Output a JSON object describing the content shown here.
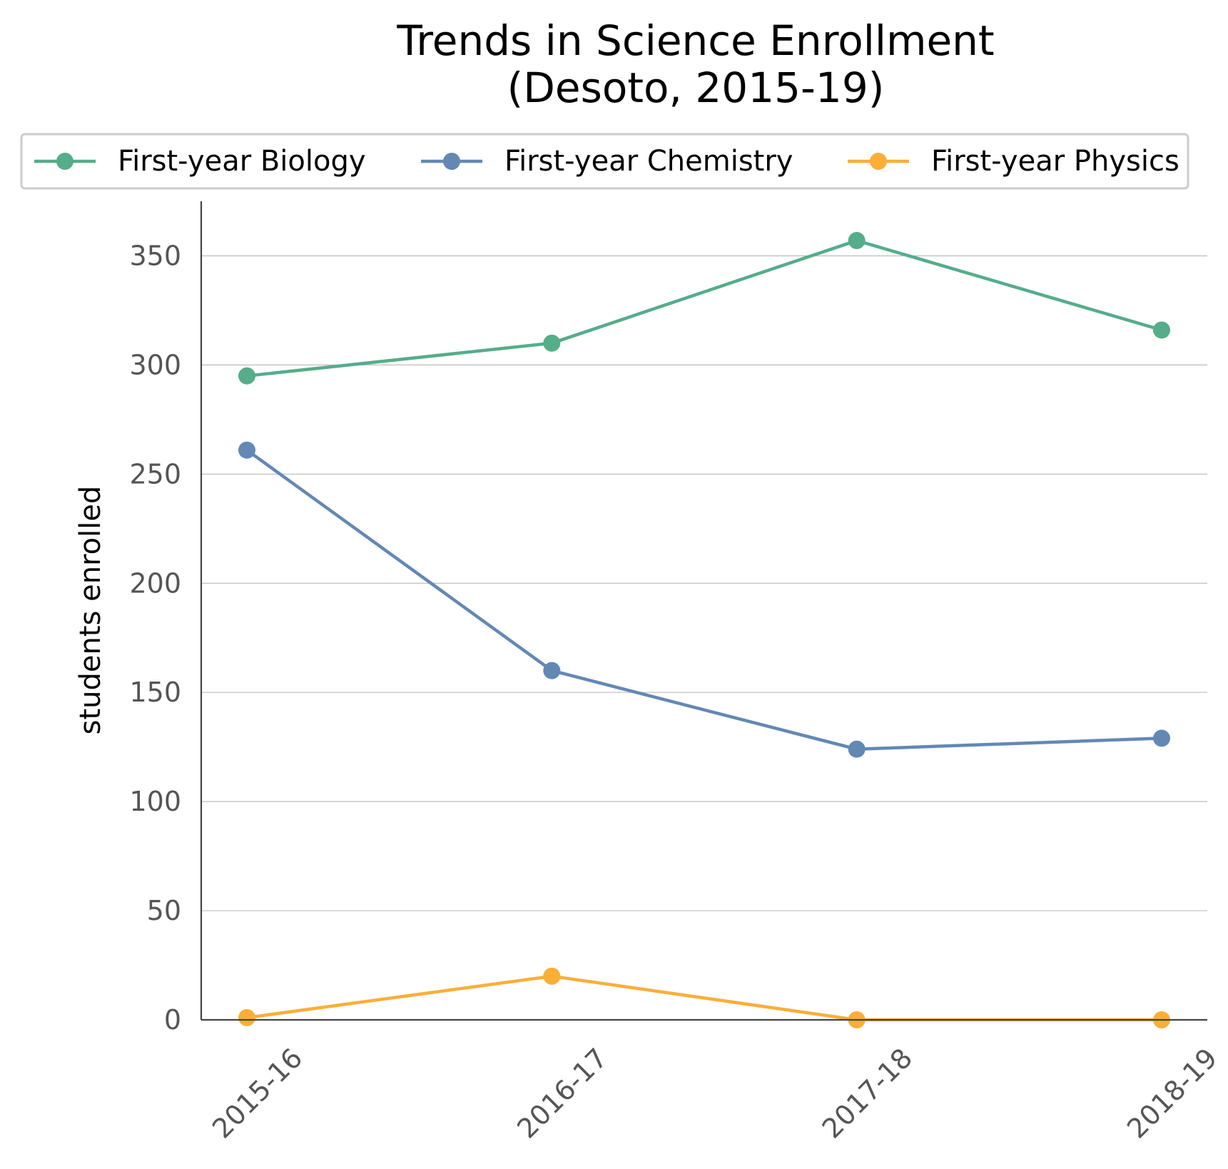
{
  "chart_data": {
    "type": "line",
    "title": "Trends in Science Enrollment\n(Desoto, 2015-19)",
    "title_lines": [
      "Trends in Science Enrollment",
      "(Desoto, 2015-19)"
    ],
    "xlabel": "",
    "ylabel": "students enrolled",
    "categories": [
      "2015-16",
      "2016-17",
      "2017-18",
      "2018-19"
    ],
    "ylim": [
      0,
      375
    ],
    "yticks": [
      0,
      50,
      100,
      150,
      200,
      250,
      300,
      350
    ],
    "grid": "horizontal",
    "legend_position": "top",
    "series": [
      {
        "name": "First-year Biology",
        "color": "#55ad89",
        "values": [
          295,
          310,
          357,
          316
        ]
      },
      {
        "name": "First-year Chemistry",
        "color": "#6388b4",
        "values": [
          261,
          160,
          124,
          129
        ]
      },
      {
        "name": "First-year Physics",
        "color": "#fbae38",
        "values": [
          1,
          20,
          0,
          0
        ]
      }
    ]
  }
}
